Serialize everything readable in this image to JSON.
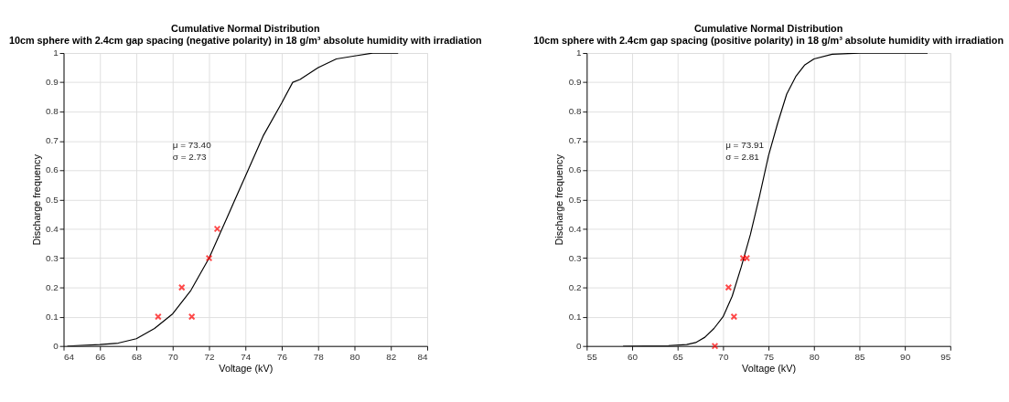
{
  "chart_data": [
    {
      "type": "line",
      "title": [
        "Cumulative Normal Distribution",
        "10cm sphere with 2.4cm gap spacing (negative polarity) in 18 g/m³ absolute humidity with irradiation"
      ],
      "xlabel": "Voltage (kV)",
      "ylabel": "Discharge frequency",
      "xlim": [
        64,
        84
      ],
      "xticks": [
        64,
        66,
        68,
        70,
        72,
        74,
        76,
        78,
        80,
        82,
        84
      ],
      "ylim": [
        0,
        1
      ],
      "yticks": [
        0,
        0.1,
        0.2,
        0.3,
        0.4,
        0.5,
        0.6,
        0.7,
        0.8,
        0.9,
        1
      ],
      "grid": true,
      "annotations": [
        "μ = 73.40",
        "σ = 2.73"
      ],
      "series": [
        {
          "color": "#000000",
          "line_style": "solid",
          "marker": "none",
          "x": [
            64.2,
            66,
            67,
            68,
            69,
            70,
            71,
            72,
            73,
            74,
            75,
            76,
            76.6,
            77,
            78,
            79,
            80,
            81,
            82.4
          ],
          "values": [
            0,
            0.005,
            0.01,
            0.025,
            0.06,
            0.11,
            0.19,
            0.3,
            0.44,
            0.58,
            0.72,
            0.83,
            0.9,
            0.91,
            0.95,
            0.98,
            0.99,
            1,
            1
          ]
        },
        {
          "type": "scatter",
          "color": "#ff0000",
          "marker": "cross",
          "x": [
            69.2,
            70.5,
            71.05,
            72,
            72.45
          ],
          "values": [
            0.1,
            0.2,
            0.1,
            0.3,
            0.4
          ]
        }
      ]
    },
    {
      "type": "line",
      "title": [
        "Cumulative Normal Distribution",
        "10cm sphere with 2.4cm gap spacing (positive polarity) in 18 g/m³ absolute humidity with irradiation"
      ],
      "xlabel": "Voltage (kV)",
      "ylabel": "Discharge frequency",
      "xlim": [
        55,
        95
      ],
      "xticks": [
        55,
        60,
        65,
        70,
        75,
        80,
        85,
        90,
        95
      ],
      "ylim": [
        0,
        1
      ],
      "yticks": [
        0,
        0.1,
        0.2,
        0.3,
        0.4,
        0.5,
        0.6,
        0.7,
        0.8,
        0.9,
        1
      ],
      "grid": true,
      "annotations": [
        "μ = 73.91",
        "σ = 2.81"
      ],
      "series": [
        {
          "color": "#000000",
          "line_style": "solid",
          "marker": "none",
          "x": [
            59,
            64,
            66,
            67,
            68,
            69,
            70,
            71,
            72,
            73,
            74,
            75,
            76,
            77,
            78,
            79,
            80,
            82,
            85,
            92.5
          ],
          "values": [
            0,
            0.001,
            0.005,
            0.012,
            0.03,
            0.06,
            0.1,
            0.17,
            0.27,
            0.38,
            0.51,
            0.65,
            0.76,
            0.86,
            0.92,
            0.96,
            0.98,
            0.996,
            1,
            1
          ]
        },
        {
          "type": "scatter",
          "color": "#ff0000",
          "marker": "cross",
          "x": [
            69.1,
            70.6,
            71.2,
            72.2,
            72.6
          ],
          "values": [
            0,
            0.2,
            0.1,
            0.3,
            0.3
          ]
        }
      ]
    }
  ]
}
